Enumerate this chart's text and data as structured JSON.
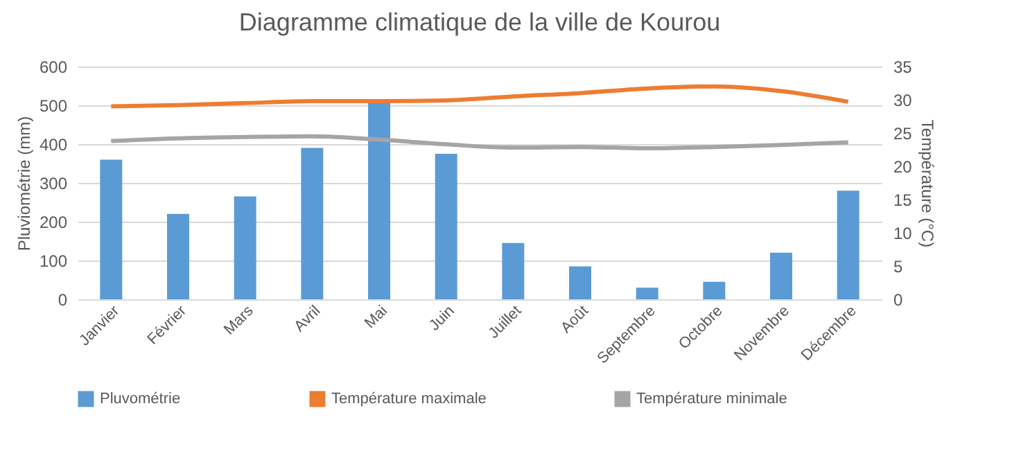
{
  "chart_data": {
    "type": "bar",
    "title": "Diagramme climatique de la ville de Kourou",
    "ylabel": "Pluviométrie (mm)",
    "y2label": "Température  (°C)",
    "categories": [
      "Janvier",
      "Février",
      "Mars",
      "Avril",
      "Mai",
      "Juin",
      "Juillet",
      "Août",
      "Septembre",
      "Octobre",
      "Novembre",
      "Décembre"
    ],
    "series": [
      {
        "name": "Pluvométrie",
        "color": "#5b9bd5",
        "values": [
          360,
          220,
          265,
          390,
          510,
          375,
          145,
          85,
          30,
          45,
          120,
          280
        ]
      },
      {
        "name": "Température maximale",
        "type": "line",
        "axis": "y2",
        "color": "#ed7d31",
        "values": [
          29,
          29.2,
          29.5,
          29.8,
          29.8,
          29.9,
          30.5,
          31,
          31.7,
          32,
          31.3,
          29.7
        ]
      },
      {
        "name": "Température minimale",
        "type": "line",
        "axis": "y2",
        "color": "#a5a5a5",
        "values": [
          23.8,
          24.2,
          24.4,
          24.5,
          24,
          23.3,
          22.8,
          22.9,
          22.7,
          22.9,
          23.2,
          23.6
        ]
      }
    ],
    "ylim": [
      0,
      600
    ],
    "yticks": [
      0,
      100,
      200,
      300,
      400,
      500,
      600
    ],
    "y2lim": [
      0,
      35
    ],
    "y2ticks": [
      0,
      5,
      10,
      15,
      20,
      25,
      30,
      35
    ],
    "grid": "y",
    "legend": "bottom"
  }
}
